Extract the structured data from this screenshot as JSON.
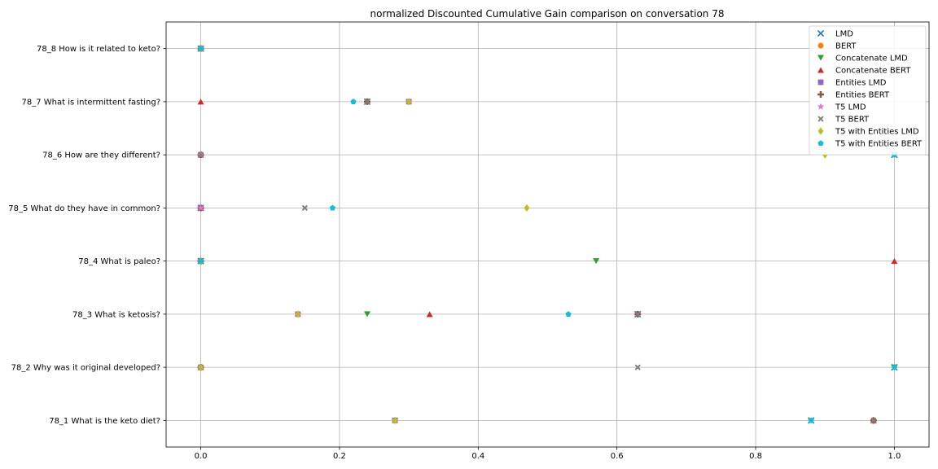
{
  "chart_data": {
    "type": "scatter",
    "title": "normalized Discounted Cumulative Gain comparison on conversation 78",
    "xlabel": "",
    "ylabel": "",
    "xlim": [
      -0.05,
      1.05
    ],
    "xticks": [
      0.0,
      0.2,
      0.4,
      0.6,
      0.8,
      1.0
    ],
    "xtick_labels": [
      "0.0",
      "0.2",
      "0.4",
      "0.6",
      "0.8",
      "1.0"
    ],
    "categories": [
      "78_1 What is the keto diet?",
      "78_2 Why was it original developed?",
      "78_3 What is ketosis?",
      "78_4 What is paleo?",
      "78_5 What do they have in common?",
      "78_6 How are they different?",
      "78_7 What is intermittent fasting?",
      "78_8 How is it related to keto?"
    ],
    "grid": true,
    "legend_position": "top-right",
    "series": [
      {
        "name": "LMD",
        "marker": "x",
        "color": "#1f77b4",
        "values": [
          0.88,
          1.0,
          0.63,
          0.0,
          0.0,
          1.0,
          0.24,
          0.0
        ]
      },
      {
        "name": "BERT",
        "marker": "circle",
        "color": "#ff7f0e",
        "values": [
          0.97,
          0.0,
          0.63,
          0.0,
          0.0,
          0.0,
          0.24,
          0.0
        ]
      },
      {
        "name": "Concatenate LMD",
        "marker": "triangle-down",
        "color": "#2ca02c",
        "values": [
          0.28,
          1.0,
          0.24,
          0.57,
          0.0,
          1.0,
          0.24,
          0.0
        ]
      },
      {
        "name": "Concatenate BERT",
        "marker": "triangle-up",
        "color": "#d62728",
        "values": [
          0.97,
          0.0,
          0.33,
          1.0,
          0.0,
          0.0,
          0.0,
          0.0
        ]
      },
      {
        "name": "Entities LMD",
        "marker": "square",
        "color": "#9467bd",
        "values": [
          0.28,
          0.0,
          0.14,
          0.0,
          0.0,
          0.0,
          0.3,
          0.0
        ]
      },
      {
        "name": "Entities BERT",
        "marker": "plus",
        "color": "#8c564b",
        "values": [
          0.97,
          0.0,
          0.63,
          0.0,
          0.0,
          0.0,
          0.24,
          0.0
        ]
      },
      {
        "name": "T5 LMD",
        "marker": "star",
        "color": "#e377c2",
        "values": [
          0.28,
          0.0,
          0.14,
          0.0,
          0.0,
          0.0,
          0.3,
          0.0
        ]
      },
      {
        "name": "T5 BERT",
        "marker": "x-thick",
        "color": "#7f7f7f",
        "values": [
          0.97,
          0.63,
          0.63,
          0.0,
          0.15,
          0.0,
          0.24,
          0.0
        ]
      },
      {
        "name": "T5 with Entities LMD",
        "marker": "diamond",
        "color": "#bcbd22",
        "values": [
          0.28,
          0.0,
          0.14,
          0.0,
          0.47,
          0.9,
          0.3,
          0.0
        ]
      },
      {
        "name": "T5 with Entities BERT",
        "marker": "pentagon",
        "color": "#17becf",
        "values": [
          0.88,
          1.0,
          0.53,
          0.0,
          0.19,
          1.0,
          0.22,
          0.0
        ]
      }
    ]
  }
}
